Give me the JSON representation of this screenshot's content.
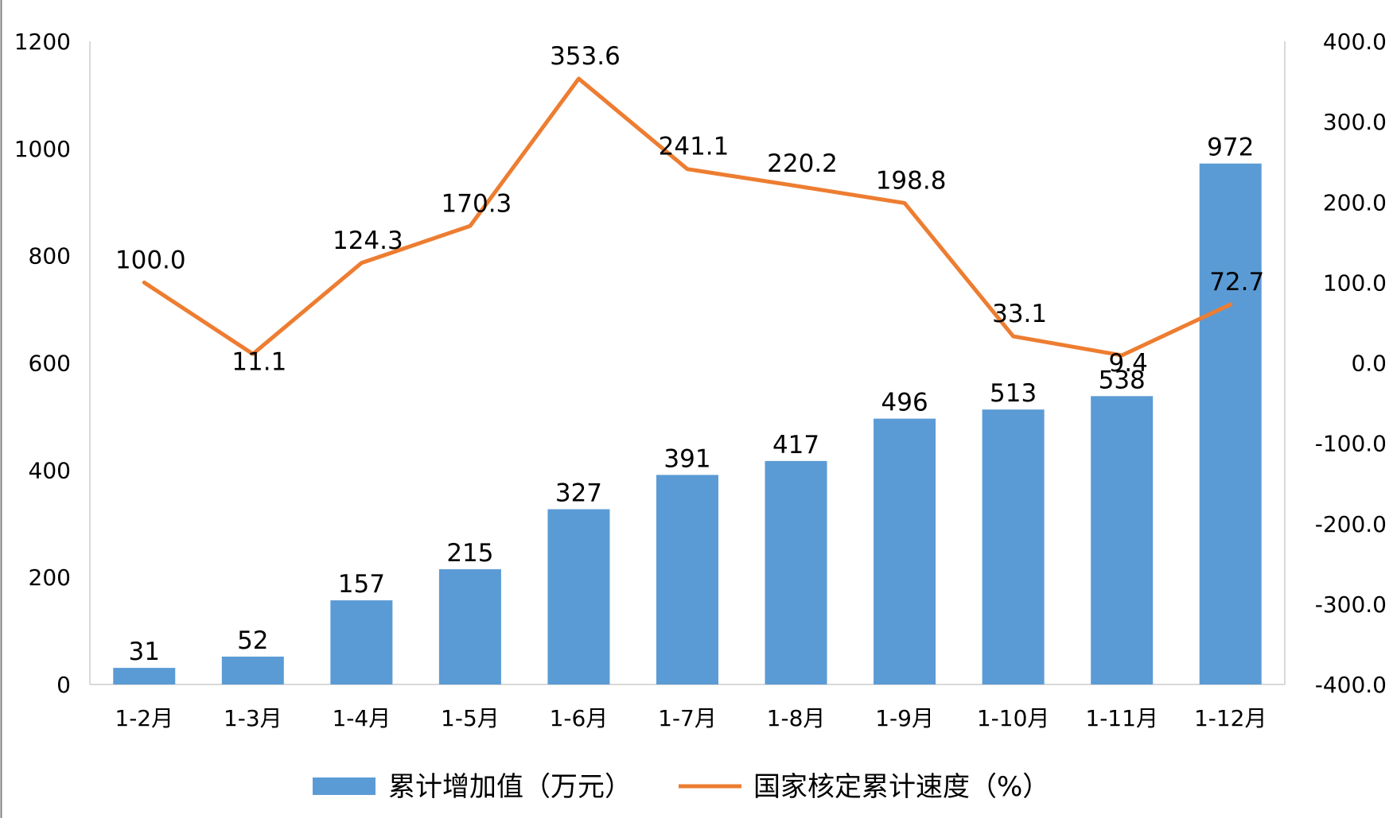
{
  "chart_data": {
    "type": "bar+line",
    "categories": [
      "1-2月",
      "1-3月",
      "1-4月",
      "1-5月",
      "1-6月",
      "1-7月",
      "1-8月",
      "1-9月",
      "1-10月",
      "1-11月",
      "1-12月"
    ],
    "series": [
      {
        "name": "累计增加值（万元）",
        "type": "bar",
        "axis": "left",
        "color": "#5b9bd5",
        "values": [
          31,
          52,
          157,
          215,
          327,
          391,
          417,
          496,
          513,
          538,
          972
        ],
        "labels": [
          "31",
          "52",
          "157",
          "215",
          "327",
          "391",
          "417",
          "496",
          "513",
          "538",
          "972"
        ]
      },
      {
        "name": "国家核定累计速度（%）",
        "type": "line",
        "axis": "right",
        "color": "#ed7d31",
        "values": [
          100.0,
          11.1,
          124.3,
          170.3,
          353.6,
          241.1,
          220.2,
          198.8,
          33.1,
          9.4,
          72.7
        ],
        "labels": [
          "100.0",
          "11.1",
          "124.3",
          "170.3",
          "353.6",
          "241.1",
          "220.2",
          "198.8",
          "33.1",
          "9.4",
          "72.7"
        ]
      }
    ],
    "y_left": {
      "min": 0,
      "max": 1200,
      "ticks": [
        "0",
        "200",
        "400",
        "600",
        "800",
        "1000",
        "1200"
      ]
    },
    "y_right": {
      "min": -400,
      "max": 400,
      "ticks": [
        "-400.0",
        "-300.0",
        "-200.0",
        "-100.0",
        "0.0",
        "100.0",
        "200.0",
        "300.0",
        "400.0"
      ]
    },
    "legend_position": "bottom",
    "grid": false,
    "title": "",
    "xlabel": "",
    "ylabel": ""
  }
}
